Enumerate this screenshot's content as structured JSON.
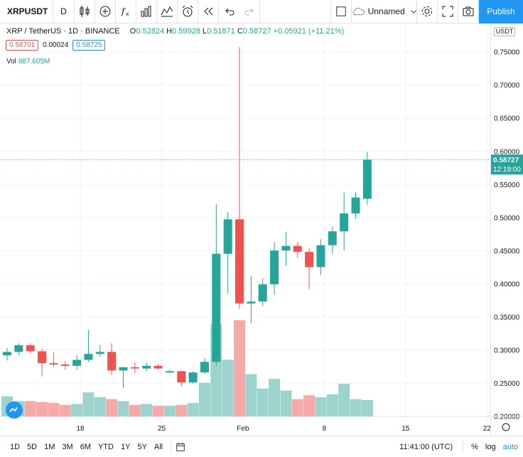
{
  "toolbar": {
    "symbol": "XRPUSDT",
    "interval": "D",
    "layout_name": "Unnamed",
    "publish_label": "Publish",
    "icons": [
      "candles-icon",
      "add-indicator-icon",
      "fx-icon",
      "compare-icon",
      "templates-icon",
      "alert-icon",
      "replay-icon",
      "undo-icon",
      "redo-icon",
      "layout-icon",
      "cloud-icon",
      "settings-icon",
      "fullscreen-icon",
      "camera-icon"
    ]
  },
  "legend": {
    "title": "XRP / TetherUS · 1D · BINANCE",
    "open_label": "O",
    "open": "0.52824",
    "high_label": "H",
    "high": "0.59928",
    "low_label": "L",
    "low": "0.51871",
    "close_label": "C",
    "close": "0.58727",
    "change": "+0.05921 (+11.21%)",
    "bid": "0.58701",
    "spread": "0.00024",
    "ask": "0.58725",
    "volume_label": "Vol",
    "volume": "887.605M"
  },
  "price_axis": {
    "currency": "USDT",
    "ticks": [
      "0.75000",
      "0.70000",
      "0.65000",
      "0.60000",
      "0.55000",
      "0.50000",
      "0.45000",
      "0.40000",
      "0.35000",
      "0.30000",
      "0.25000",
      "0.20000"
    ],
    "last_price": "0.58727",
    "countdown": "12:19:00"
  },
  "time_axis": {
    "ticks": [
      "18",
      "25",
      "Feb",
      "8",
      "15",
      "22"
    ]
  },
  "bottom": {
    "ranges": [
      "1D",
      "5D",
      "1M",
      "3M",
      "6M",
      "YTD",
      "1Y",
      "5Y",
      "All"
    ],
    "clock": "11:41:00 (UTC)",
    "percent_label": "%",
    "log_label": "log",
    "auto_label": "auto"
  },
  "colors": {
    "up": "#26a69a",
    "down": "#ef5350",
    "accent": "#2196f3",
    "up_vol": "#9cd4cd",
    "down_vol": "#f5a9a9"
  },
  "chart_data": {
    "type": "candlestick",
    "ylim": [
      0.19,
      0.77
    ],
    "candles": [
      {
        "o": 0.292,
        "h": 0.303,
        "l": 0.284,
        "c": 0.297,
        "v": 0.21
      },
      {
        "o": 0.297,
        "h": 0.31,
        "l": 0.292,
        "c": 0.307,
        "v": 0.16
      },
      {
        "o": 0.307,
        "h": 0.31,
        "l": 0.295,
        "c": 0.298,
        "v": 0.16
      },
      {
        "o": 0.298,
        "h": 0.302,
        "l": 0.26,
        "c": 0.28,
        "v": 0.15
      },
      {
        "o": 0.28,
        "h": 0.296,
        "l": 0.274,
        "c": 0.278,
        "v": 0.14
      },
      {
        "o": 0.278,
        "h": 0.283,
        "l": 0.27,
        "c": 0.276,
        "v": 0.12
      },
      {
        "o": 0.276,
        "h": 0.292,
        "l": 0.27,
        "c": 0.285,
        "v": 0.13
      },
      {
        "o": 0.285,
        "h": 0.33,
        "l": 0.282,
        "c": 0.294,
        "v": 0.25
      },
      {
        "o": 0.294,
        "h": 0.307,
        "l": 0.29,
        "c": 0.297,
        "v": 0.2
      },
      {
        "o": 0.297,
        "h": 0.31,
        "l": 0.262,
        "c": 0.269,
        "v": 0.18
      },
      {
        "o": 0.269,
        "h": 0.273,
        "l": 0.242,
        "c": 0.274,
        "v": 0.16
      },
      {
        "o": 0.274,
        "h": 0.281,
        "l": 0.265,
        "c": 0.272,
        "v": 0.12
      },
      {
        "o": 0.272,
        "h": 0.281,
        "l": 0.268,
        "c": 0.276,
        "v": 0.13
      },
      {
        "o": 0.276,
        "h": 0.279,
        "l": 0.27,
        "c": 0.272,
        "v": 0.11
      },
      {
        "o": 0.266,
        "h": 0.27,
        "l": 0.265,
        "c": 0.268,
        "v": 0.11
      },
      {
        "o": 0.268,
        "h": 0.268,
        "l": 0.245,
        "c": 0.251,
        "v": 0.12
      },
      {
        "o": 0.251,
        "h": 0.268,
        "l": 0.249,
        "c": 0.266,
        "v": 0.14
      },
      {
        "o": 0.266,
        "h": 0.288,
        "l": 0.264,
        "c": 0.282,
        "v": 0.35
      },
      {
        "o": 0.282,
        "h": 0.52,
        "l": 0.276,
        "c": 0.445,
        "v": 0.96
      },
      {
        "o": 0.445,
        "h": 0.508,
        "l": 0.385,
        "c": 0.497,
        "v": 0.59
      },
      {
        "o": 0.497,
        "h": 0.757,
        "l": 0.362,
        "c": 0.37,
        "v": 1.0
      },
      {
        "o": 0.37,
        "h": 0.412,
        "l": 0.34,
        "c": 0.373,
        "v": 0.44
      },
      {
        "o": 0.373,
        "h": 0.408,
        "l": 0.366,
        "c": 0.399,
        "v": 0.29
      },
      {
        "o": 0.399,
        "h": 0.463,
        "l": 0.383,
        "c": 0.45,
        "v": 0.39
      },
      {
        "o": 0.45,
        "h": 0.478,
        "l": 0.427,
        "c": 0.457,
        "v": 0.27
      },
      {
        "o": 0.457,
        "h": 0.463,
        "l": 0.44,
        "c": 0.448,
        "v": 0.18
      },
      {
        "o": 0.448,
        "h": 0.453,
        "l": 0.392,
        "c": 0.425,
        "v": 0.22
      },
      {
        "o": 0.425,
        "h": 0.467,
        "l": 0.413,
        "c": 0.458,
        "v": 0.2
      },
      {
        "o": 0.458,
        "h": 0.486,
        "l": 0.445,
        "c": 0.479,
        "v": 0.23
      },
      {
        "o": 0.479,
        "h": 0.538,
        "l": 0.45,
        "c": 0.506,
        "v": 0.34
      },
      {
        "o": 0.506,
        "h": 0.538,
        "l": 0.498,
        "c": 0.53,
        "v": 0.18
      },
      {
        "o": 0.528,
        "h": 0.599,
        "l": 0.519,
        "c": 0.587,
        "v": 0.17
      }
    ]
  }
}
